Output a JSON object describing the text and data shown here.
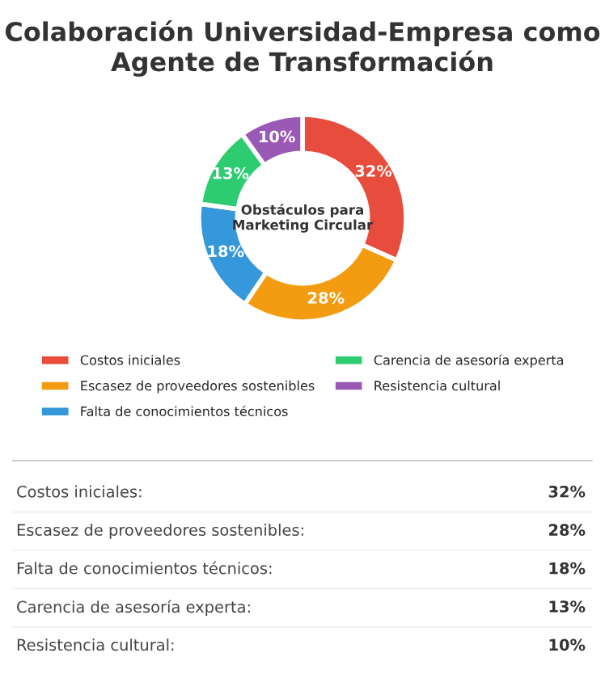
{
  "chart_data": {
    "type": "donut",
    "title": "Colaboración Universidad-Empresa como Agente de Transformación",
    "categories": [
      "Costos iniciales",
      "Escasez de proveedores sostenibles",
      "Falta de conocimientos técnicos",
      "Carencia de asesoría experta",
      "Resistencia cultural"
    ],
    "values": [
      32,
      28,
      18,
      13,
      10
    ],
    "colors": [
      "#e74c3c",
      "#f39c12",
      "#3498db",
      "#2ecc71",
      "#9b59b6"
    ],
    "value_labels": [
      "32%",
      "28%",
      "18%",
      "13%",
      "10%"
    ],
    "annotations": [
      "Obstáculos para\nMarketing Circular",
      "Costos iniciales:",
      "Escasez de proveedores sostenibles:",
      "Falta de conocimientos técnicos:",
      "Carencia de asesoría experta:",
      "Resistencia cultural:"
    ],
    "legend": "bottom"
  }
}
